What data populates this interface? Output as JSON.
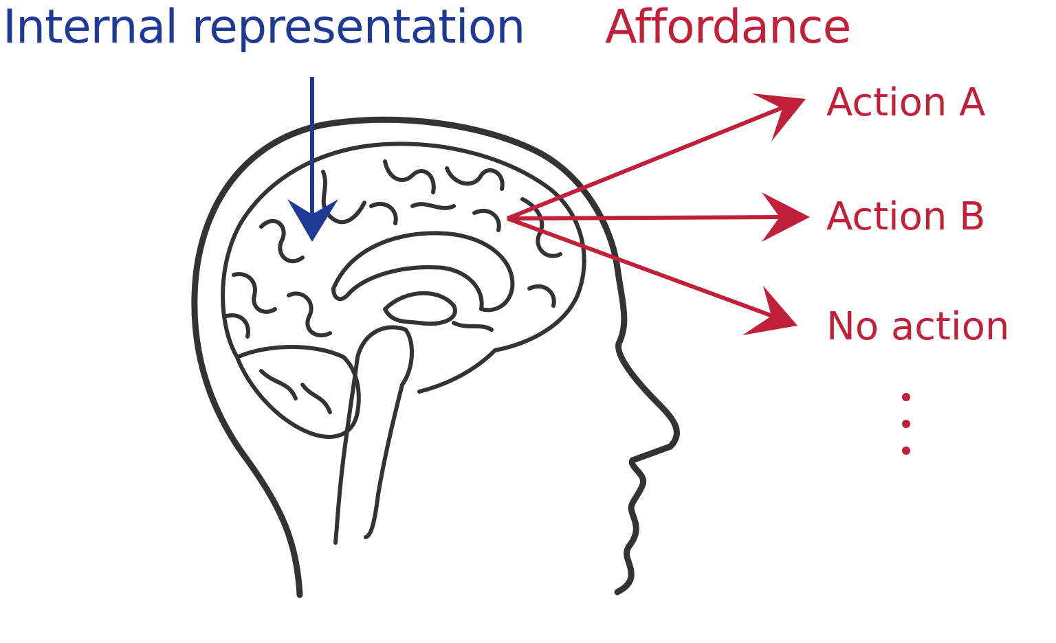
{
  "labels": {
    "internal_representation": "Internal representation",
    "affordance": "Affordance",
    "actions": [
      "Action A",
      "Action B",
      "No action"
    ],
    "more": "⋮"
  },
  "colors": {
    "blue": "#1f3a96",
    "red": "#c0203a",
    "outline": "#333333"
  },
  "icons": {
    "head": "head-profile-icon",
    "brain": "brain-icon"
  }
}
